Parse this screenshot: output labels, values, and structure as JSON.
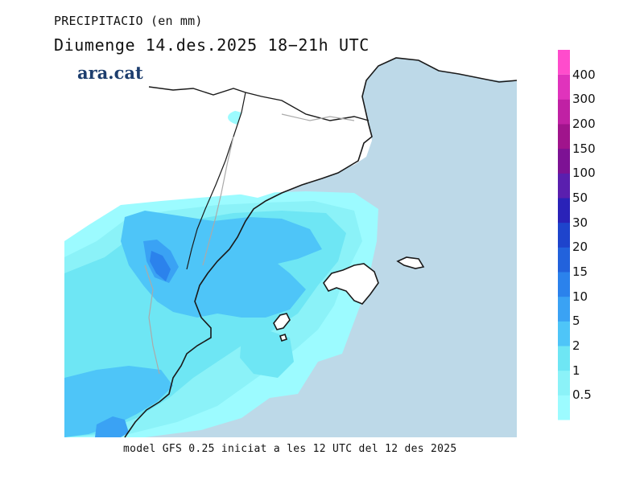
{
  "title": {
    "variable": "PRECIPITACIO (en mm)",
    "date": "Diumenge  14.des.2025  18−21h UTC"
  },
  "brand": "ara.cat",
  "footer": "model GFS 0.25 iniciat a les 12 UTC del 12 des 2025",
  "legend": {
    "bins": [
      {
        "label": "0.5",
        "color": "#9cfbff"
      },
      {
        "label": "1",
        "color": "#8bf2f8"
      },
      {
        "label": "2",
        "color": "#6ee6f4"
      },
      {
        "label": "5",
        "color": "#4ec5f8"
      },
      {
        "label": "10",
        "color": "#3aa2f4"
      },
      {
        "label": "15",
        "color": "#2b82ec"
      },
      {
        "label": "20",
        "color": "#2262dc"
      },
      {
        "label": "30",
        "color": "#1e44cc"
      },
      {
        "label": "50",
        "color": "#2a22b8"
      },
      {
        "label": "100",
        "color": "#5a1fae"
      },
      {
        "label": "150",
        "color": "#7d1294"
      },
      {
        "label": "200",
        "color": "#a0148c"
      },
      {
        "label": "300",
        "color": "#c021a4"
      },
      {
        "label": "400",
        "color": "#e033bc"
      }
    ],
    "top_color": "#ff4ccc"
  },
  "colors": {
    "sea": "#bdd9e8",
    "land": "#ffffff",
    "coast": "#1a1a1a",
    "border": "#aaaaaa"
  }
}
